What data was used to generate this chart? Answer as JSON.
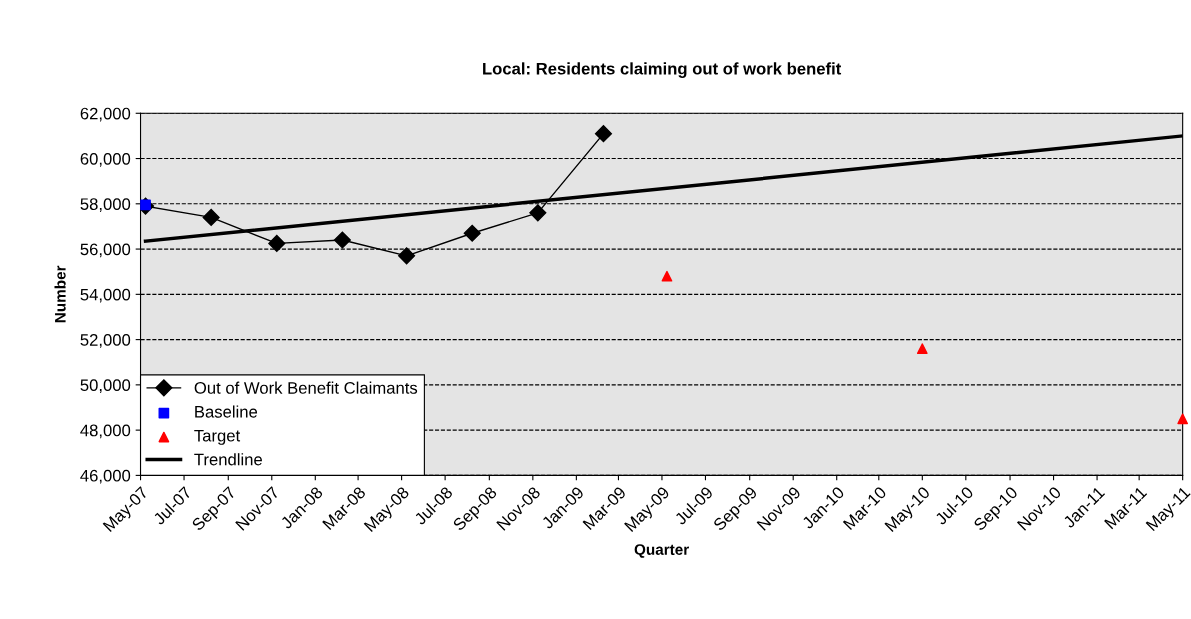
{
  "chart_data": {
    "type": "line",
    "title": "Local: Residents claiming out of work benefit",
    "xlabel": "Quarter",
    "ylabel": "Number",
    "series": [
      {
        "name": "Out of Work Benefit Claimants",
        "color": "#000000",
        "marker": "diamond",
        "x": [
          "2007-05-08",
          "2007-08-08",
          "2007-11-08",
          "2008-02-08",
          "2008-05-08",
          "2008-08-08",
          "2008-11-08",
          "2009-02-08"
        ],
        "values": [
          57900,
          57400,
          56250,
          56400,
          55700,
          56700,
          57600,
          61100
        ]
      },
      {
        "name": "Baseline",
        "type": "scatter",
        "color": "#0000ff",
        "marker": "square",
        "x": [
          "2007-05-08"
        ],
        "values": [
          57950
        ]
      },
      {
        "name": "Target",
        "type": "scatter",
        "color": "#ff0000",
        "marker": "triangle",
        "x": [
          "2009-05-08",
          "2010-05-01",
          "2011-05-01"
        ],
        "values": [
          54800,
          51600,
          48500
        ]
      },
      {
        "name": "Trendline",
        "color": "#000000",
        "marker": "none",
        "x": [
          "2007-05-08",
          "2011-05-01"
        ],
        "values": [
          56350,
          61000
        ]
      }
    ],
    "xlim": [
      "2007-05-01",
      "2011-05-01"
    ],
    "xticks": [
      {
        "value": "2007-05-01",
        "label": "May-07"
      },
      {
        "value": "2007-07-01",
        "label": "Jul-07"
      },
      {
        "value": "2007-09-01",
        "label": "Sep-07"
      },
      {
        "value": "2007-11-01",
        "label": "Nov-07"
      },
      {
        "value": "2008-01-01",
        "label": "Jan-08"
      },
      {
        "value": "2008-03-01",
        "label": "Mar-08"
      },
      {
        "value": "2008-05-01",
        "label": "May-08"
      },
      {
        "value": "2008-07-01",
        "label": "Jul-08"
      },
      {
        "value": "2008-09-01",
        "label": "Sep-08"
      },
      {
        "value": "2008-11-01",
        "label": "Nov-08"
      },
      {
        "value": "2009-01-01",
        "label": "Jan-09"
      },
      {
        "value": "2009-03-01",
        "label": "Mar-09"
      },
      {
        "value": "2009-05-01",
        "label": "May-09"
      },
      {
        "value": "2009-07-01",
        "label": "Jul-09"
      },
      {
        "value": "2009-09-01",
        "label": "Sep-09"
      },
      {
        "value": "2009-11-01",
        "label": "Nov-09"
      },
      {
        "value": "2010-01-01",
        "label": "Jan-10"
      },
      {
        "value": "2010-03-01",
        "label": "Mar-10"
      },
      {
        "value": "2010-05-01",
        "label": "May-10"
      },
      {
        "value": "2010-07-01",
        "label": "Jul-10"
      },
      {
        "value": "2010-09-01",
        "label": "Sep-10"
      },
      {
        "value": "2010-11-01",
        "label": "Nov-10"
      },
      {
        "value": "2011-01-01",
        "label": "Jan-11"
      },
      {
        "value": "2011-03-01",
        "label": "Mar-11"
      },
      {
        "value": "2011-05-01",
        "label": "May-11"
      }
    ],
    "ylim": [
      46000,
      62000
    ],
    "yticks": [
      {
        "value": 46000,
        "label": "46,000"
      },
      {
        "value": 48000,
        "label": "48,000"
      },
      {
        "value": 50000,
        "label": "50,000"
      },
      {
        "value": 52000,
        "label": "52,000"
      },
      {
        "value": 54000,
        "label": "54,000"
      },
      {
        "value": 56000,
        "label": "56,000"
      },
      {
        "value": 58000,
        "label": "58,000"
      },
      {
        "value": 60000,
        "label": "60,000"
      },
      {
        "value": 62000,
        "label": "62,000"
      }
    ],
    "grid": "y",
    "legend": "bottom left"
  }
}
